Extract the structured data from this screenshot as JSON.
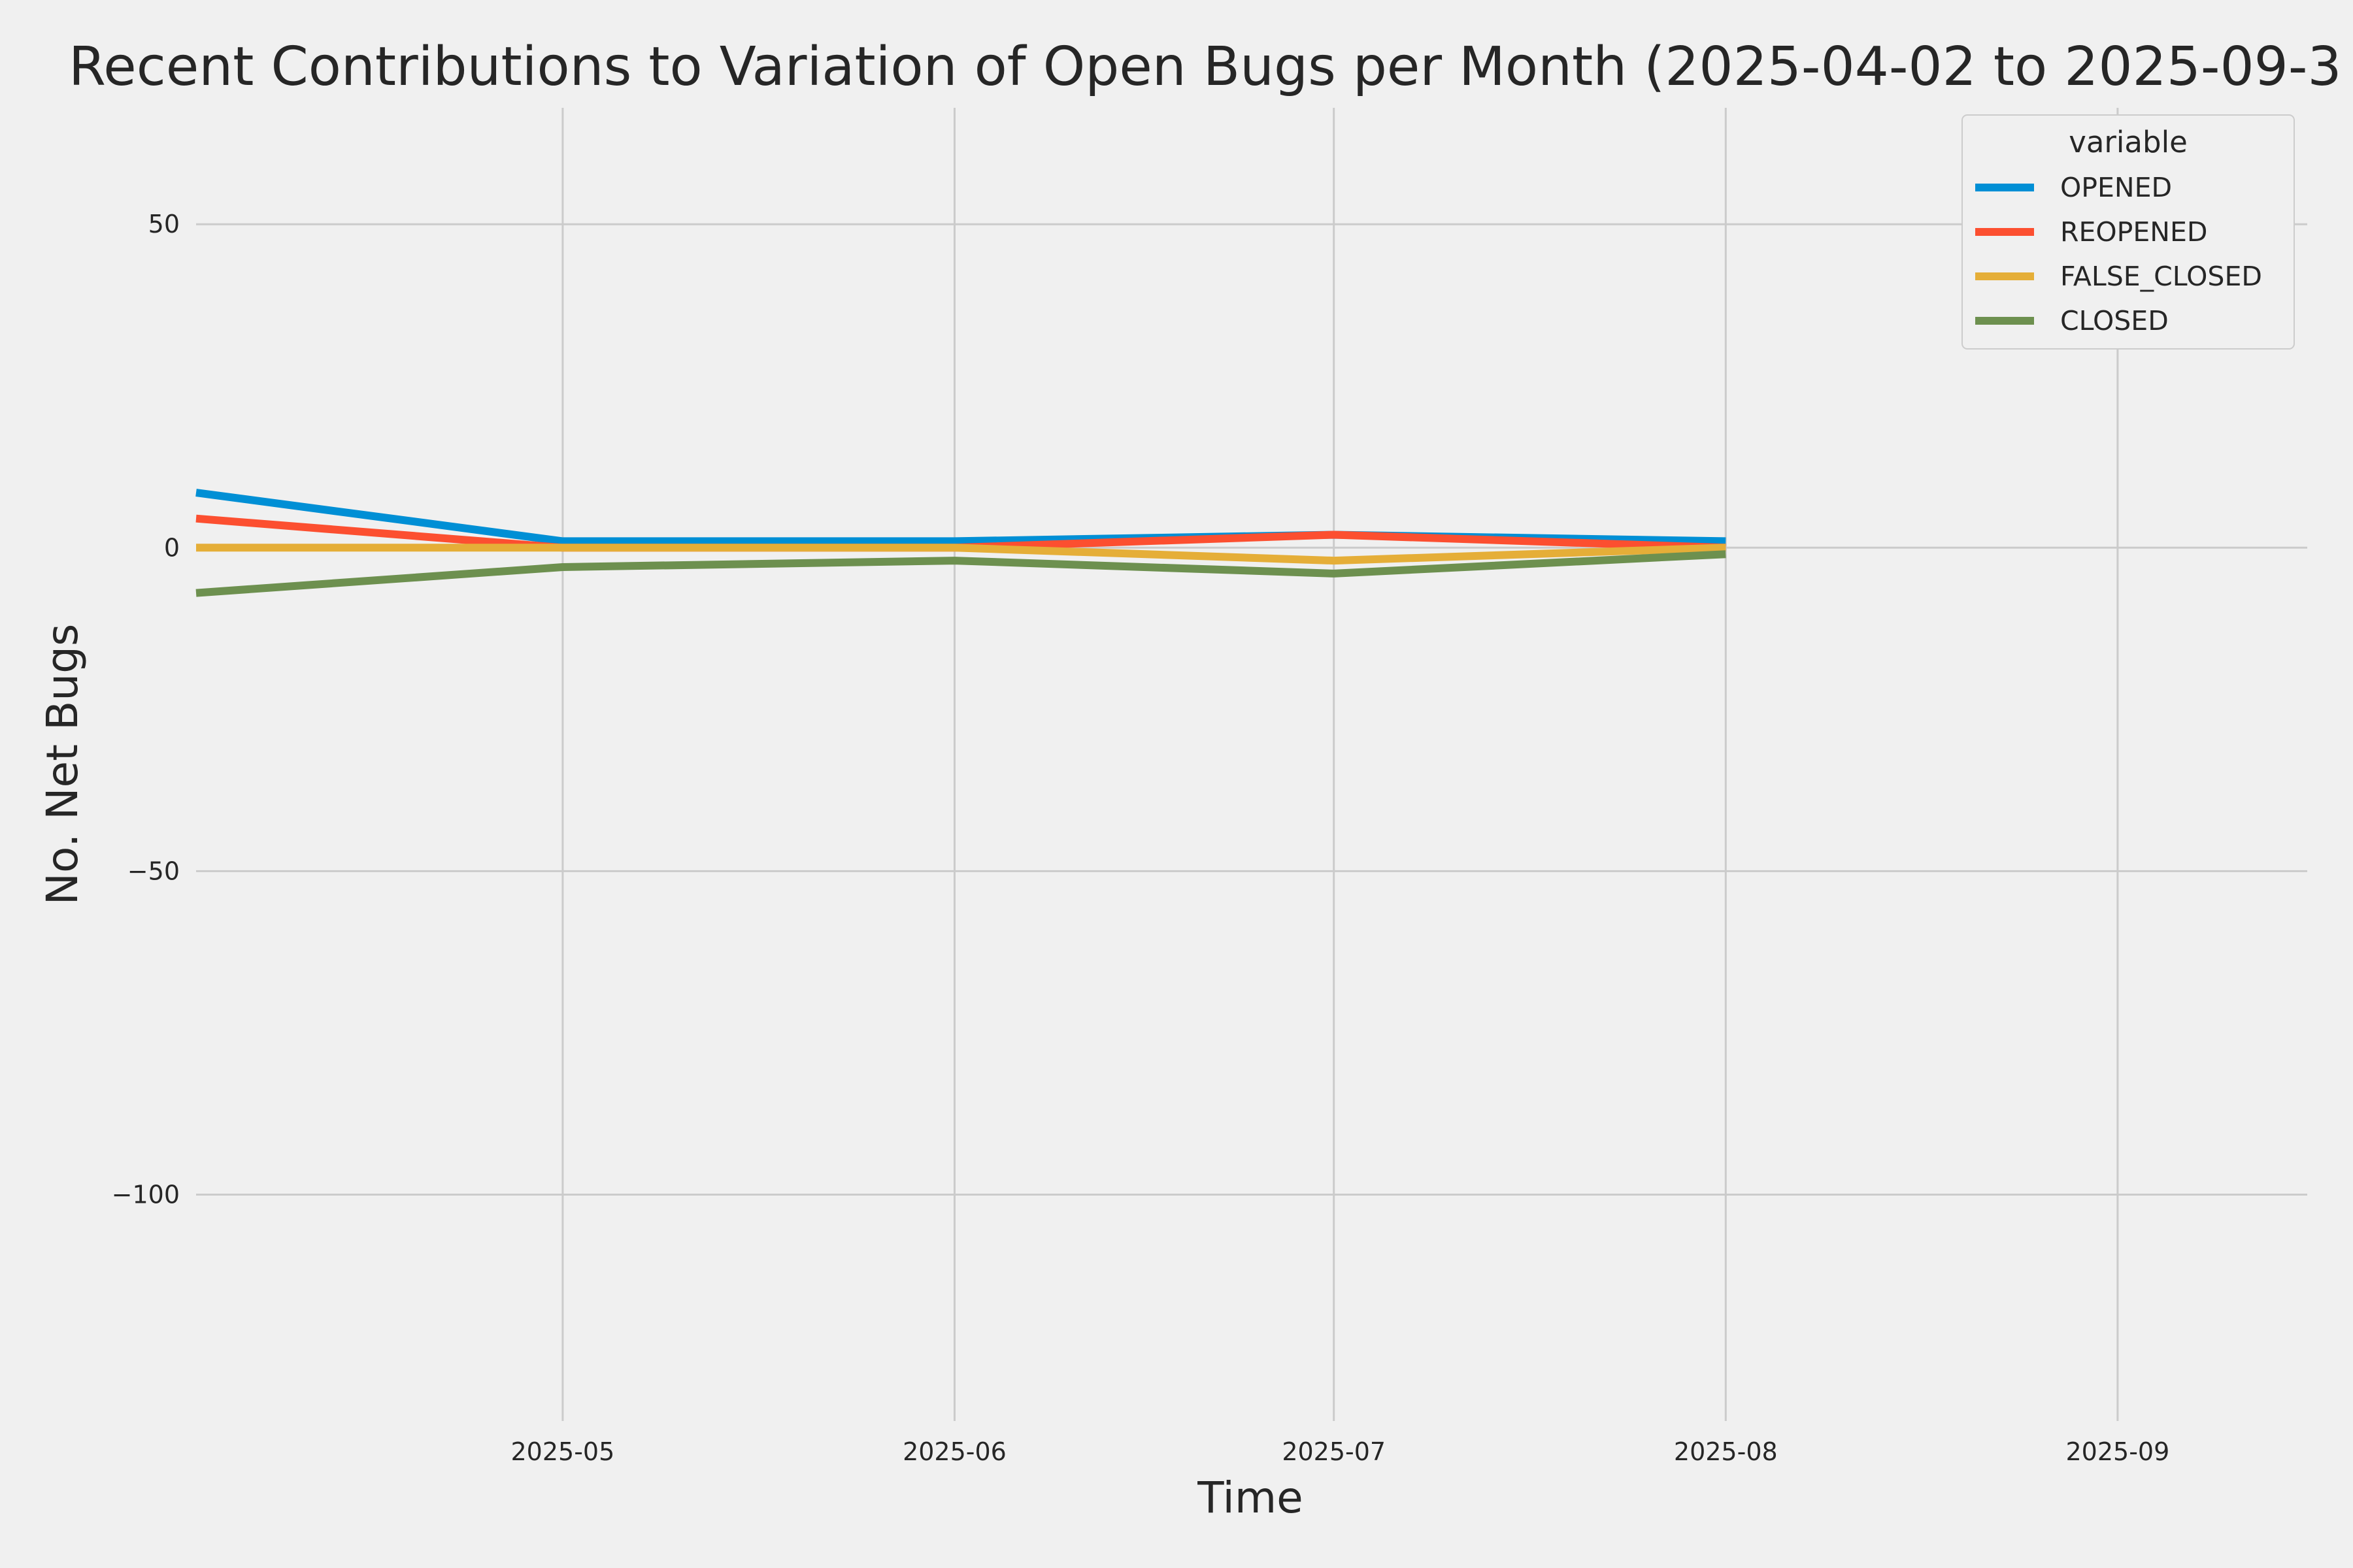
{
  "chart_data": {
    "type": "line",
    "title": "Recent Contributions to Variation of Open Bugs per Month (2025-04-02 to 2025-09-3",
    "xlabel": "Time",
    "ylabel": "No. Net Bugs",
    "x": [
      "2025-04-02",
      "2025-05-01",
      "2025-06-01",
      "2025-07-01",
      "2025-08-01"
    ],
    "xlim": [
      "2025-04-02",
      "2025-09-16"
    ],
    "ylim": [
      -135,
      68
    ],
    "xticks": [
      "2025-05",
      "2025-06",
      "2025-07",
      "2025-08",
      "2025-09"
    ],
    "yticks": [
      50,
      0,
      -50,
      -100
    ],
    "ytick_labels": [
      "50",
      "0",
      "−50",
      "−100"
    ],
    "grid": true,
    "legend": {
      "title": "variable",
      "position": "top-right"
    },
    "series": [
      {
        "name": "OPENED",
        "color": "#008fd5",
        "values": [
          8.5,
          1,
          1,
          2,
          1
        ]
      },
      {
        "name": "REOPENED",
        "color": "#fc4f30",
        "values": [
          4.5,
          0,
          0,
          2,
          0
        ]
      },
      {
        "name": "FALSE_CLOSED",
        "color": "#e5ae38",
        "values": [
          0,
          0,
          0,
          -2,
          0
        ]
      },
      {
        "name": "CLOSED",
        "color": "#6d904f",
        "values": [
          -7,
          -3,
          -2,
          -4,
          -1
        ]
      }
    ]
  }
}
